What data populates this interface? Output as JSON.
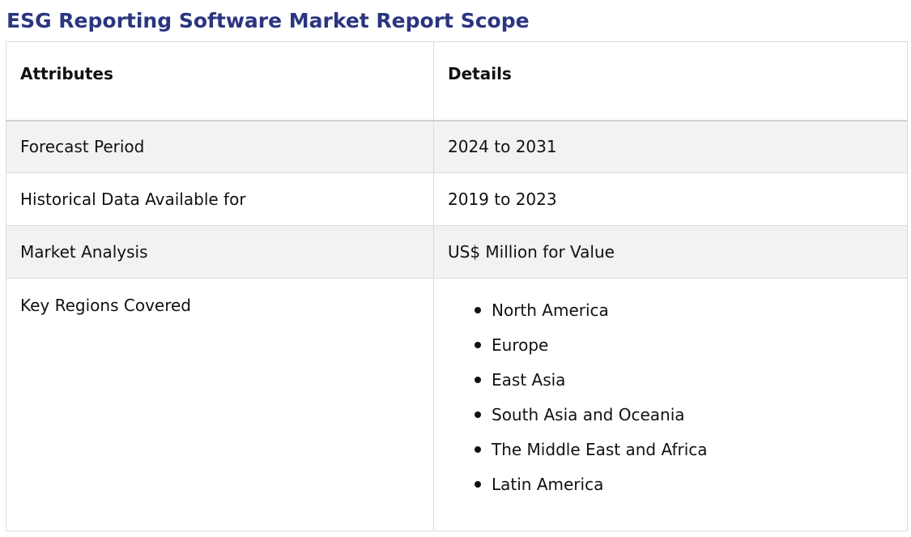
{
  "title": "ESG Reporting Software Market Report Scope",
  "table": {
    "headers": [
      "Attributes",
      "Details"
    ],
    "rows": [
      {
        "attribute": "Forecast Period",
        "detail": "2024 to 2031"
      },
      {
        "attribute": "Historical Data Available for",
        "detail": "2019 to 2023"
      },
      {
        "attribute": "Market Analysis",
        "detail": "US$ Million for Value"
      }
    ],
    "regions": {
      "attribute": "Key Regions Covered",
      "items": [
        "North America",
        "Europe",
        "East Asia",
        "South Asia and Oceania",
        "The Middle East and Africa",
        "Latin America"
      ]
    }
  }
}
